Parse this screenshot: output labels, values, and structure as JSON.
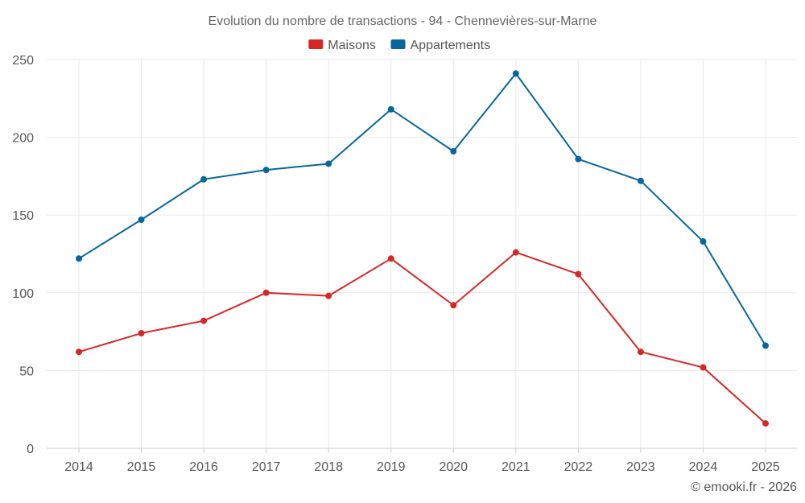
{
  "chart_data": {
    "type": "line",
    "title": "Evolution du nombre de transactions - 94 - Chennevières-sur-Marne",
    "xlabel": "",
    "ylabel": "",
    "categories": [
      "2014",
      "2015",
      "2016",
      "2017",
      "2018",
      "2019",
      "2020",
      "2021",
      "2022",
      "2023",
      "2024",
      "2025"
    ],
    "ylim": [
      0,
      250
    ],
    "yticks": [
      0,
      50,
      100,
      150,
      200,
      250
    ],
    "grid": true,
    "legend_position": "top-center",
    "series": [
      {
        "name": "Maisons",
        "color": "#d62728",
        "values": [
          62,
          74,
          82,
          100,
          98,
          122,
          92,
          126,
          112,
          62,
          52,
          16
        ]
      },
      {
        "name": "Appartements",
        "color": "#07679c",
        "values": [
          122,
          147,
          173,
          179,
          183,
          218,
          191,
          241,
          186,
          172,
          133,
          66
        ]
      }
    ]
  },
  "footer": {
    "credit": "© emooki.fr - 2026"
  }
}
